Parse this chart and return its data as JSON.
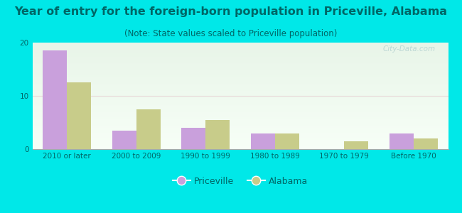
{
  "title": "Year of entry for the foreign-born population in Priceville, Alabama",
  "subtitle": "(Note: State values scaled to Priceville population)",
  "categories": [
    "2010 or later",
    "2000 to 2009",
    "1990 to 1999",
    "1980 to 1989",
    "1970 to 1979",
    "Before 1970"
  ],
  "priceville_values": [
    18.5,
    3.5,
    4.0,
    3.0,
    0.0,
    3.0
  ],
  "alabama_values": [
    12.5,
    7.5,
    5.5,
    3.0,
    1.5,
    2.0
  ],
  "priceville_color": "#c9a0dc",
  "alabama_color": "#c8cc8a",
  "background_top": "#e8f5e8",
  "background_bottom": "#f8fff8",
  "outer_background": "#00e8e8",
  "ylim": [
    0,
    20
  ],
  "yticks": [
    0,
    10,
    20
  ],
  "grid_color": "#e8d8d8",
  "bar_width": 0.35,
  "title_fontsize": 11.5,
  "subtitle_fontsize": 8.5,
  "tick_fontsize": 7.5,
  "legend_fontsize": 9,
  "text_color": "#006666",
  "watermark_text": "City-Data.com"
}
